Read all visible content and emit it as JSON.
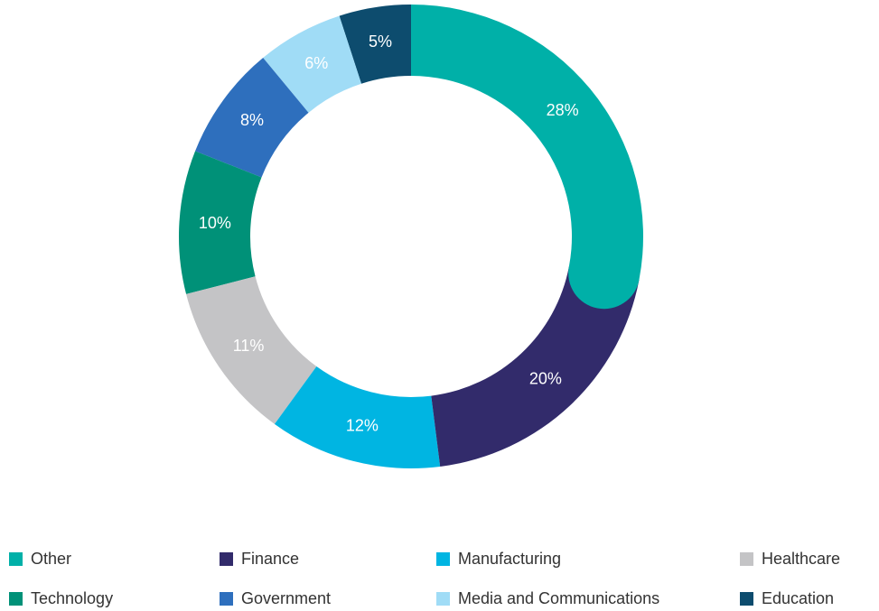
{
  "chart_data": {
    "type": "pie",
    "categories": [
      "Other",
      "Finance",
      "Manufacturing",
      "Healthcare",
      "Technology",
      "Government",
      "Media and Communications",
      "Education"
    ],
    "values": [
      28,
      20,
      12,
      11,
      10,
      8,
      6,
      5
    ],
    "value_labels": [
      "28%",
      "20%",
      "12%",
      "11%",
      "10%",
      "8%",
      "6%",
      "5%"
    ],
    "colors": [
      "#00b0a8",
      "#322b6b",
      "#00b5e2",
      "#c4c4c6",
      "#009178",
      "#2e6fbd",
      "#a0dcf6",
      "#0d4c6e"
    ]
  }
}
